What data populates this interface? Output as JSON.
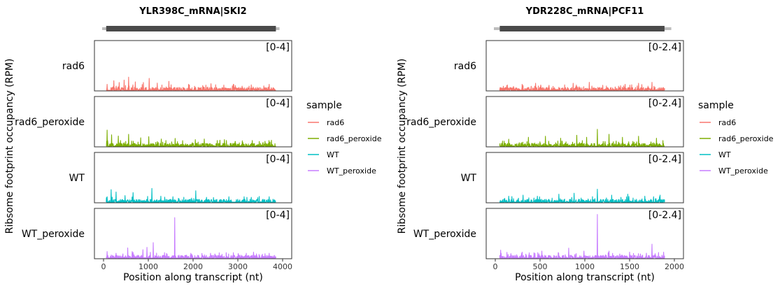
{
  "chart_data": [
    {
      "type": "line",
      "title": "YLR398C_mRNA|SKI2",
      "xlabel": "Position along transcript (nt)",
      "ylabel": "Ribsome footprint occupancy (RPM)",
      "xlim": [
        0,
        4000
      ],
      "xticks": [
        "0",
        "1000",
        "2000",
        "3000",
        "4000"
      ],
      "transcript_span": [
        0,
        3900
      ],
      "cds_span": [
        60,
        3850
      ],
      "range_label": "[0-4]",
      "ylim": [
        0,
        4
      ],
      "panels": [
        "rad6",
        "rad6_peroxide",
        "WT",
        "WT_peroxide"
      ],
      "series": [
        {
          "name": "rad6",
          "color": "#F8766D",
          "peaks": [
            [
              80,
              0.5
            ],
            [
              230,
              0.8
            ],
            [
              350,
              0.65
            ],
            [
              460,
              0.85
            ],
            [
              560,
              1.1
            ],
            [
              710,
              0.7
            ],
            [
              890,
              0.65
            ],
            [
              1020,
              1.0
            ],
            [
              1200,
              0.6
            ],
            [
              1460,
              0.75
            ],
            [
              1900,
              0.5
            ],
            [
              2400,
              0.55
            ],
            [
              2900,
              0.5
            ],
            [
              3300,
              0.45
            ],
            [
              3700,
              0.5
            ]
          ]
        },
        {
          "name": "rad6_peroxide",
          "color": "#7CAE00",
          "peaks": [
            [
              80,
              1.35
            ],
            [
              180,
              0.95
            ],
            [
              330,
              0.85
            ],
            [
              560,
              1.0
            ],
            [
              830,
              0.7
            ],
            [
              1010,
              0.8
            ],
            [
              1290,
              0.6
            ],
            [
              1600,
              0.65
            ],
            [
              2050,
              0.55
            ],
            [
              2250,
              0.6
            ],
            [
              2600,
              0.5
            ],
            [
              2700,
              0.55
            ],
            [
              3100,
              0.45
            ],
            [
              3750,
              0.5
            ]
          ]
        },
        {
          "name": "WT",
          "color": "#00BFC4",
          "peaks": [
            [
              80,
              0.45
            ],
            [
              170,
              1.05
            ],
            [
              280,
              0.85
            ],
            [
              480,
              0.55
            ],
            [
              660,
              0.8
            ],
            [
              1080,
              1.15
            ],
            [
              1280,
              0.5
            ],
            [
              1550,
              0.45
            ],
            [
              2060,
              0.95
            ],
            [
              2300,
              0.4
            ],
            [
              2800,
              0.45
            ],
            [
              3300,
              0.4
            ],
            [
              3700,
              0.45
            ]
          ]
        },
        {
          "name": "WT_peroxide",
          "color": "#C77CFF",
          "peaks": [
            [
              80,
              0.55
            ],
            [
              280,
              0.4
            ],
            [
              540,
              0.85
            ],
            [
              640,
              0.55
            ],
            [
              880,
              0.7
            ],
            [
              970,
              0.9
            ],
            [
              1110,
              1.3
            ],
            [
              1590,
              3.4
            ],
            [
              1950,
              0.4
            ],
            [
              2390,
              0.4
            ],
            [
              2900,
              0.45
            ],
            [
              3350,
              0.5
            ],
            [
              3700,
              0.4
            ]
          ]
        }
      ]
    },
    {
      "type": "line",
      "title": "YDR228C_mRNA|PCF11",
      "xlabel": "Position along transcript (nt)",
      "ylabel": "Ribsome footprint occupancy (RPM)",
      "xlim": [
        0,
        2000
      ],
      "xticks": [
        "0",
        "500",
        "1000",
        "1500",
        "2000"
      ],
      "transcript_span": [
        0,
        1950
      ],
      "cds_span": [
        50,
        1890
      ],
      "range_label": "[0-2.4]",
      "ylim": [
        0,
        2.4
      ],
      "panels": [
        "rad6",
        "rad6_peroxide",
        "WT",
        "WT_peroxide"
      ],
      "series": [
        {
          "name": "rad6",
          "color": "#F8766D",
          "peaks": [
            [
              90,
              0.2
            ],
            [
              300,
              0.3
            ],
            [
              450,
              0.35
            ],
            [
              600,
              0.25
            ],
            [
              870,
              0.35
            ],
            [
              1050,
              0.4
            ],
            [
              1200,
              0.25
            ],
            [
              1450,
              0.3
            ],
            [
              1600,
              0.35
            ],
            [
              1750,
              0.4
            ]
          ]
        },
        {
          "name": "rad6_peroxide",
          "color": "#7CAE00",
          "peaks": [
            [
              150,
              0.35
            ],
            [
              370,
              0.45
            ],
            [
              560,
              0.5
            ],
            [
              730,
              0.4
            ],
            [
              910,
              0.55
            ],
            [
              1020,
              0.45
            ],
            [
              1140,
              0.85
            ],
            [
              1270,
              0.6
            ],
            [
              1420,
              0.45
            ],
            [
              1600,
              0.5
            ],
            [
              1800,
              0.4
            ]
          ]
        },
        {
          "name": "WT",
          "color": "#00BFC4",
          "peaks": [
            [
              150,
              0.3
            ],
            [
              310,
              0.35
            ],
            [
              470,
              0.3
            ],
            [
              710,
              0.4
            ],
            [
              880,
              0.45
            ],
            [
              1140,
              0.65
            ],
            [
              1300,
              0.35
            ],
            [
              1480,
              0.4
            ],
            [
              1670,
              0.3
            ],
            [
              1840,
              0.35
            ]
          ]
        },
        {
          "name": "WT_peroxide",
          "color": "#C77CFF",
          "peaks": [
            [
              60,
              0.4
            ],
            [
              300,
              0.3
            ],
            [
              520,
              0.35
            ],
            [
              820,
              0.5
            ],
            [
              990,
              0.35
            ],
            [
              1140,
              2.2
            ],
            [
              1270,
              0.35
            ],
            [
              1500,
              0.3
            ],
            [
              1750,
              0.7
            ],
            [
              1880,
              0.3
            ]
          ]
        }
      ]
    }
  ],
  "legend": {
    "title": "sample",
    "items": [
      {
        "label": "rad6",
        "color": "#F8766D"
      },
      {
        "label": "rad6_peroxide",
        "color": "#7CAE00"
      },
      {
        "label": "WT",
        "color": "#00BFC4"
      },
      {
        "label": "WT_peroxide",
        "color": "#C77CFF"
      }
    ]
  }
}
